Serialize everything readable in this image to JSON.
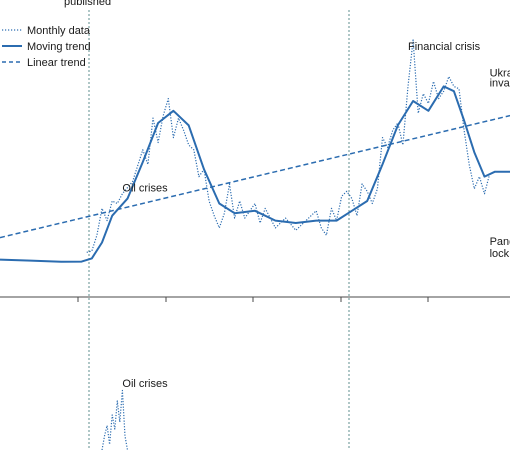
{
  "chart_data": [
    {
      "type": "line",
      "title": "",
      "xlabel": "",
      "ylabel": "",
      "legend_position": "top-left",
      "colors": {
        "line": "#2b6cb0",
        "axis": "#4a4a4a",
        "vline": "#5f8f8f"
      },
      "x_range": [
        0,
        100
      ],
      "y_range": [
        0,
        100
      ],
      "legend": [
        {
          "name": "Monthly data",
          "style": "dotted"
        },
        {
          "name": "Moving trend",
          "style": "solid"
        },
        {
          "name": "Linear trend",
          "style": "dashed"
        }
      ],
      "series": [
        {
          "name": "Moving trend",
          "points": [
            [
              0,
              10
            ],
            [
              6,
              9.6
            ],
            [
              12,
              9.1
            ],
            [
              16,
              9.2
            ],
            [
              18,
              10.5
            ],
            [
              20,
              17
            ],
            [
              22,
              28
            ],
            [
              25,
              35
            ],
            [
              28,
              50
            ],
            [
              31,
              66
            ],
            [
              34,
              71
            ],
            [
              37,
              65
            ],
            [
              40,
              47
            ],
            [
              43,
              33
            ],
            [
              46,
              29
            ],
            [
              50,
              30
            ],
            [
              54,
              26
            ],
            [
              58,
              25
            ],
            [
              62,
              26
            ],
            [
              66,
              26
            ],
            [
              69,
              30
            ],
            [
              72,
              34
            ],
            [
              75,
              49
            ],
            [
              78,
              65
            ],
            [
              81,
              75
            ],
            [
              84,
              71
            ],
            [
              87,
              81
            ],
            [
              89,
              79
            ],
            [
              91,
              67
            ],
            [
              93,
              54
            ],
            [
              95,
              44
            ],
            [
              97,
              46
            ],
            [
              100,
              46
            ]
          ]
        },
        {
          "name": "Linear trend",
          "points": [
            [
              0,
              19
            ],
            [
              100,
              69
            ]
          ]
        },
        {
          "name": "Monthly data",
          "points": [
            [
              17,
              13
            ],
            [
              18,
              13.5
            ],
            [
              19,
              20
            ],
            [
              20,
              31
            ],
            [
              21,
              26
            ],
            [
              22,
              34
            ],
            [
              23,
              33
            ],
            [
              24,
              37
            ],
            [
              26,
              42
            ],
            [
              28,
              55
            ],
            [
              29,
              49
            ],
            [
              30,
              68
            ],
            [
              31,
              58
            ],
            [
              32,
              69
            ],
            [
              33,
              76
            ],
            [
              34,
              60
            ],
            [
              35,
              68
            ],
            [
              36,
              63
            ],
            [
              37,
              57
            ],
            [
              38,
              55
            ],
            [
              39,
              44
            ],
            [
              40,
              47
            ],
            [
              41,
              34
            ],
            [
              42,
              28
            ],
            [
              43,
              23
            ],
            [
              44,
              29
            ],
            [
              45,
              41
            ],
            [
              46,
              27
            ],
            [
              47,
              34
            ],
            [
              48,
              27
            ],
            [
              50,
              33
            ],
            [
              51,
              25
            ],
            [
              52,
              31
            ],
            [
              53,
              27
            ],
            [
              54,
              23
            ],
            [
              56,
              27
            ],
            [
              58,
              22
            ],
            [
              60,
              26
            ],
            [
              62,
              30
            ],
            [
              63,
              23
            ],
            [
              64,
              20
            ],
            [
              65,
              31
            ],
            [
              66,
              26
            ],
            [
              67,
              36
            ],
            [
              68,
              38
            ],
            [
              69,
              35
            ],
            [
              70,
              28
            ],
            [
              71,
              41
            ],
            [
              72,
              38
            ],
            [
              73,
              33
            ],
            [
              74,
              39
            ],
            [
              75,
              60
            ],
            [
              76,
              56
            ],
            [
              77,
              63
            ],
            [
              78,
              66
            ],
            [
              79,
              57
            ],
            [
              80,
              81
            ],
            [
              81,
              100
            ],
            [
              82,
              70
            ],
            [
              83,
              78
            ],
            [
              84,
              74
            ],
            [
              85,
              83
            ],
            [
              86,
              76
            ],
            [
              87,
              79
            ],
            [
              88,
              85
            ],
            [
              89,
              81
            ],
            [
              90,
              80
            ],
            [
              91,
              63
            ],
            [
              92,
              49
            ],
            [
              93,
              39
            ],
            [
              94,
              44
            ],
            [
              95,
              37
            ],
            [
              96,
              45
            ]
          ]
        }
      ],
      "annotations": [
        {
          "text": "Oil crises",
          "x": 24,
          "y": 38
        },
        {
          "text": "Financial crisis",
          "x": 80,
          "y": 96
        },
        {
          "text": "Ukrai",
          "x": 96,
          "y": 85
        },
        {
          "text": "invasi",
          "x": 96,
          "y": 81
        },
        {
          "text": "Pand",
          "x": 96,
          "y": 16
        },
        {
          "text": "lock",
          "x": 96,
          "y": 11
        }
      ],
      "header_fragment": "published"
    },
    {
      "type": "line",
      "title": "",
      "xlabel": "",
      "ylabel": "",
      "x_range": [
        0,
        100
      ],
      "y_range": [
        0,
        100
      ],
      "annotations": [
        {
          "text": "Oil crises",
          "x": 24,
          "y": 90
        }
      ],
      "series": [
        {
          "name": "Monthly data",
          "points": [
            [
              20,
              0
            ],
            [
              20.5,
              20
            ],
            [
              21,
              35
            ],
            [
              21.5,
              8
            ],
            [
              22,
              50
            ],
            [
              22.5,
              30
            ],
            [
              23,
              70
            ],
            [
              23.5,
              40
            ],
            [
              24,
              85
            ],
            [
              24.5,
              20
            ],
            [
              25,
              0
            ]
          ]
        }
      ]
    }
  ]
}
